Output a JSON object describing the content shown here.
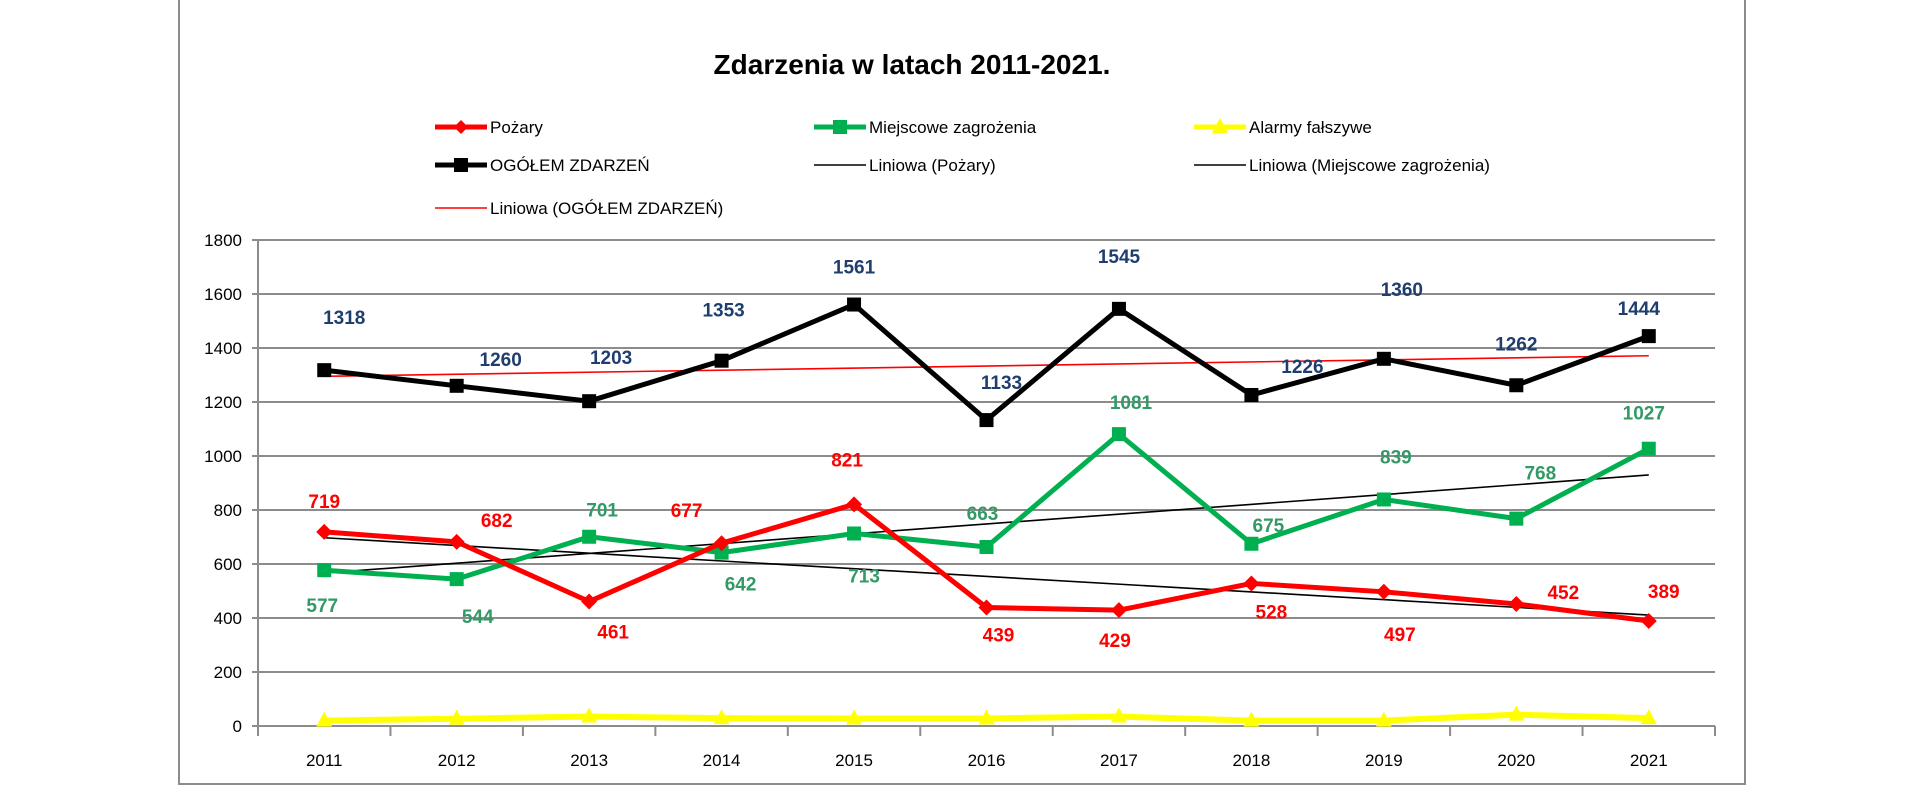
{
  "chart_data": {
    "type": "line",
    "title": "Zdarzenia w latach 2011-2021.",
    "xlabel": "",
    "ylabel": "",
    "categories": [
      "2011",
      "2012",
      "2013",
      "2014",
      "2015",
      "2016",
      "2017",
      "2018",
      "2019",
      "2020",
      "2021"
    ],
    "ylim": [
      0,
      1800
    ],
    "yticks": [
      0,
      200,
      400,
      600,
      800,
      1000,
      1200,
      1400,
      1600,
      1800
    ],
    "grid": true,
    "legend_position": "top",
    "series": [
      {
        "name": "Pożary",
        "color": "#FF0000",
        "label_color": "#FF0000",
        "marker": "diamond",
        "show_labels": true,
        "values": [
          719,
          682,
          461,
          677,
          821,
          439,
          429,
          528,
          497,
          452,
          389
        ]
      },
      {
        "name": "Miejscowe zagrożenia",
        "color": "#00B050",
        "label_color": "#339966",
        "marker": "square",
        "show_labels": true,
        "values": [
          577,
          544,
          701,
          642,
          713,
          663,
          1081,
          675,
          839,
          768,
          1027
        ]
      },
      {
        "name": "Alarmy fałszywe",
        "color": "#FFFF00",
        "label_color": "#FFFF00",
        "marker": "triangle",
        "show_labels": false,
        "values": [
          20,
          27,
          35,
          29,
          28,
          28,
          35,
          20,
          20,
          42,
          29
        ]
      },
      {
        "name": "OGÓŁEM ZDARZEŃ",
        "color": "#000000",
        "label_color": "#1F3E6E",
        "marker": "square",
        "show_labels": true,
        "values": [
          1318,
          1260,
          1203,
          1353,
          1561,
          1133,
          1545,
          1226,
          1360,
          1262,
          1444
        ]
      }
    ],
    "trendlines": [
      {
        "name": "Liniowa (Pożary)",
        "of": "Pożary",
        "type": "linear",
        "color": "#000000"
      },
      {
        "name": "Liniowa (Miejscowe zagrożenia)",
        "of": "Miejscowe zagrożenia",
        "type": "linear",
        "color": "#000000"
      },
      {
        "name": "Liniowa (OGÓŁEM ZDARZEŃ)",
        "of": "OGÓŁEM ZDARZEŃ",
        "type": "linear",
        "color": "#FF0000"
      }
    ]
  }
}
